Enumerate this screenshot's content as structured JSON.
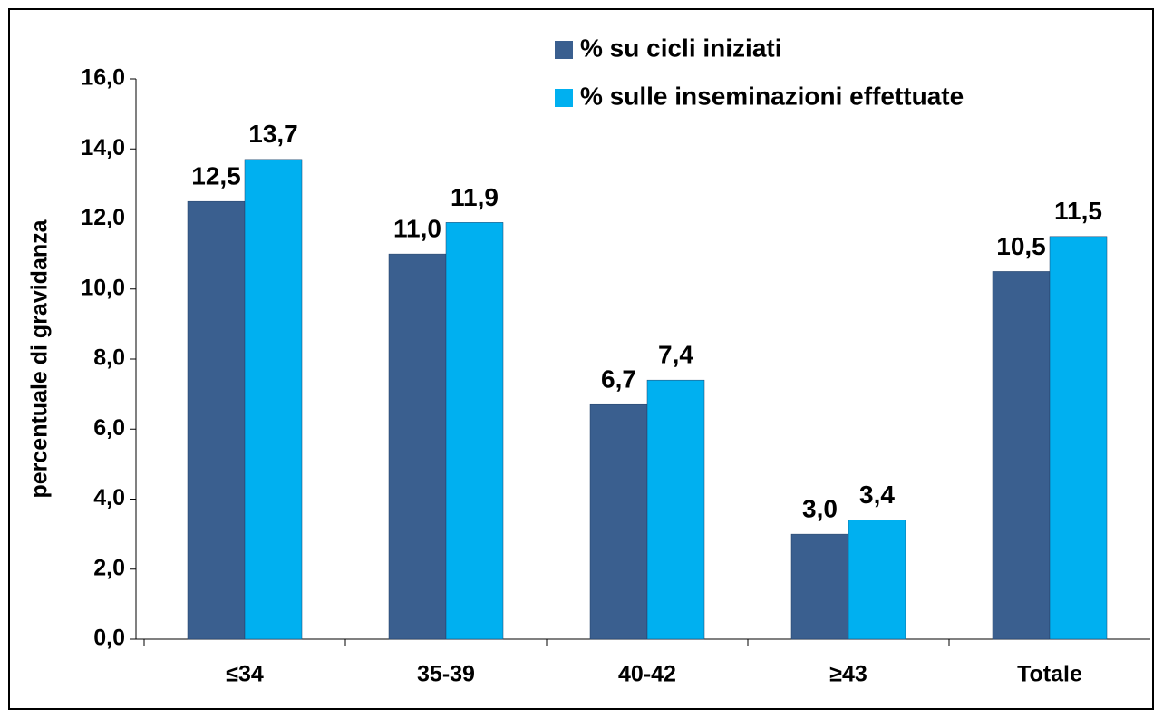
{
  "chart_data": {
    "type": "bar",
    "y_label": "percentuale di gravidanza",
    "categories": [
      "≤34",
      "35-39",
      "40-42",
      "≥43",
      "Totale"
    ],
    "series": [
      {
        "name": "% su cicli iniziati",
        "color": "#3a5f8f",
        "values": [
          12.5,
          11.0,
          6.7,
          3.0,
          10.5
        ],
        "value_labels": [
          "12,5",
          "11,0",
          "6,7",
          "3,0",
          "10,5"
        ]
      },
      {
        "name": "% sulle inseminazioni effettuate",
        "color": "#00b0f0",
        "values": [
          13.7,
          11.9,
          7.4,
          3.4,
          11.5
        ],
        "value_labels": [
          "13,7",
          "11,9",
          "7,4",
          "3,4",
          "11,5"
        ]
      }
    ],
    "ylim": [
      0,
      16
    ],
    "yticks": [
      {
        "value": 0,
        "label": "0,0"
      },
      {
        "value": 2,
        "label": "2,0"
      },
      {
        "value": 4,
        "label": "4,0"
      },
      {
        "value": 6,
        "label": "6,0"
      },
      {
        "value": 8,
        "label": "8,0"
      },
      {
        "value": 10,
        "label": "10,0"
      },
      {
        "value": 12,
        "label": "12,0"
      },
      {
        "value": 14,
        "label": "14,0"
      },
      {
        "value": 16,
        "label": "16,0"
      }
    ],
    "grid": false,
    "legend": "top-right"
  }
}
